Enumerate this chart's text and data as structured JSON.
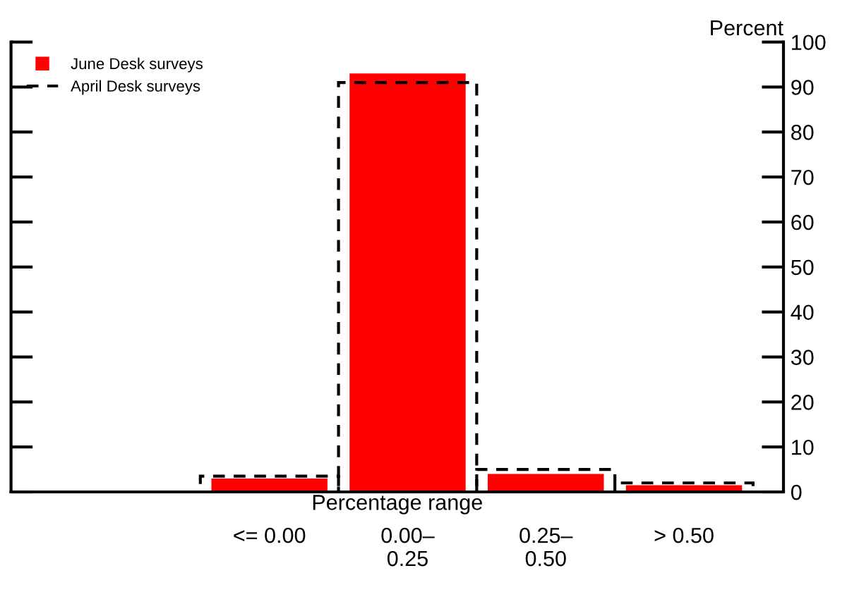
{
  "chart_data": {
    "type": "bar",
    "xlabel": "Percentage range",
    "ylabel": "Percent",
    "categories": [
      "<= 0.00",
      "0.00–\n0.25",
      "0.25–\n0.50",
      "> 0.50"
    ],
    "series": [
      {
        "name": "June Desk surveys",
        "color": "#ff0000",
        "values": [
          3,
          93,
          4,
          1.5
        ]
      },
      {
        "name": "April Desk surveys",
        "color": "#000000",
        "values": [
          3.5,
          91,
          5,
          2
        ],
        "line_style": "dashed"
      }
    ],
    "ylim": [
      0,
      100
    ],
    "yticks": [
      0,
      10,
      20,
      30,
      40,
      50,
      60,
      70,
      80,
      90,
      100
    ],
    "grid": false,
    "legend": "top left"
  }
}
